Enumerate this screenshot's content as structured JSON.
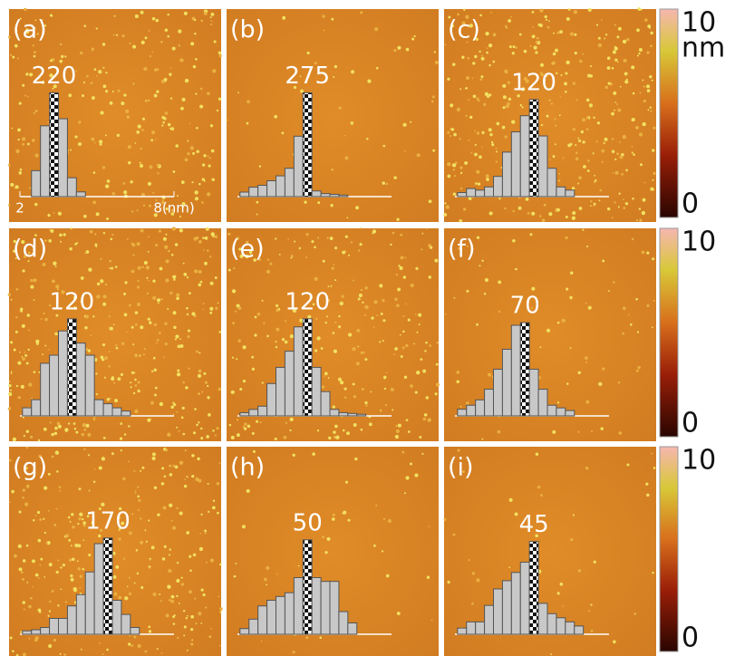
{
  "chart_data": [
    {
      "type": "histogram",
      "title": "(a)",
      "xlim": [
        2,
        8
      ],
      "xticks": [
        2,
        {
          "value": 8,
          "label": "8(nm)"
        }
      ],
      "ylim": [
        0,
        240
      ],
      "bins": [
        2.45,
        2.8,
        3.15,
        3.5,
        3.85,
        4.2,
        4.55
      ],
      "values": [
        55,
        150,
        220,
        165,
        40,
        10
      ],
      "color": "#c8c8c8"
    },
    {
      "type": "histogram",
      "title": "(b)",
      "xlim": [
        2,
        8
      ],
      "ylim": [
        0,
        300
      ],
      "bins": [
        2.1,
        2.45,
        2.8,
        3.15,
        3.5,
        3.85,
        4.2,
        4.55,
        4.9,
        5.25,
        5.6,
        5.95,
        6.3
      ],
      "values": [
        12,
        25,
        30,
        42,
        55,
        75,
        160,
        275,
        15,
        8,
        6,
        4
      ],
      "color": "#c8c8c8"
    },
    {
      "type": "histogram",
      "title": "(c)",
      "xlim": [
        2,
        8
      ],
      "ylim": [
        0,
        140
      ],
      "bins": [
        2.1,
        2.45,
        2.8,
        3.15,
        3.5,
        3.85,
        4.2,
        4.55,
        4.9,
        5.25,
        5.6,
        5.95,
        6.3,
        6.65
      ],
      "values": [
        5,
        10,
        8,
        12,
        25,
        55,
        80,
        100,
        120,
        75,
        35,
        12,
        8
      ],
      "color": "#c8c8c8"
    },
    {
      "type": "histogram",
      "title": "(d)",
      "xlim": [
        2,
        8
      ],
      "ylim": [
        0,
        140
      ],
      "bins": [
        2.1,
        2.45,
        2.8,
        3.15,
        3.5,
        3.85,
        4.2,
        4.55,
        4.9,
        5.25,
        5.6,
        5.95,
        6.3
      ],
      "values": [
        10,
        20,
        65,
        75,
        105,
        120,
        90,
        75,
        20,
        15,
        10,
        6
      ],
      "color": "#c8c8c8"
    },
    {
      "type": "histogram",
      "title": "(e)",
      "xlim": [
        2,
        8
      ],
      "ylim": [
        0,
        140
      ],
      "bins": [
        2.1,
        2.45,
        2.8,
        3.15,
        3.5,
        3.85,
        4.2,
        4.55,
        4.9,
        5.25,
        5.6,
        5.95,
        6.3,
        6.65,
        7.0
      ],
      "values": [
        4,
        8,
        12,
        40,
        60,
        80,
        110,
        120,
        60,
        30,
        8,
        4,
        3,
        2
      ],
      "color": "#c8c8c8"
    },
    {
      "type": "histogram",
      "title": "(f)",
      "xlim": [
        2,
        8
      ],
      "ylim": [
        0,
        85
      ],
      "bins": [
        2.1,
        2.45,
        2.8,
        3.15,
        3.5,
        3.85,
        4.2,
        4.55,
        4.9,
        5.25,
        5.6,
        5.95,
        6.3,
        6.65
      ],
      "values": [
        5,
        8,
        12,
        20,
        35,
        50,
        68,
        70,
        35,
        20,
        8,
        6,
        4
      ],
      "color": "#c8c8c8"
    },
    {
      "type": "histogram",
      "title": "(g)",
      "xlim": [
        2,
        8
      ],
      "ylim": [
        0,
        200
      ],
      "bins": [
        2.1,
        2.45,
        2.8,
        3.15,
        3.5,
        3.85,
        4.2,
        4.55,
        4.9,
        5.25,
        5.6,
        5.95,
        6.3,
        6.65
      ],
      "values": [
        6,
        8,
        12,
        28,
        28,
        50,
        70,
        110,
        160,
        170,
        60,
        35,
        12
      ],
      "color": "#c8c8c8"
    },
    {
      "type": "histogram",
      "title": "(h)",
      "xlim": [
        2,
        8
      ],
      "ylim": [
        0,
        60
      ],
      "bins": [
        2.1,
        2.45,
        2.8,
        3.15,
        3.5,
        3.85,
        4.2,
        4.55,
        4.9,
        5.25,
        5.6,
        5.95,
        6.3,
        6.65
      ],
      "values": [
        3,
        8,
        15,
        18,
        20,
        22,
        30,
        50,
        30,
        28,
        28,
        12,
        6
      ],
      "color": "#c8c8c8"
    },
    {
      "type": "histogram",
      "title": "(i)",
      "xlim": [
        2,
        8
      ],
      "ylim": [
        0,
        55
      ],
      "bins": [
        2.1,
        2.45,
        2.8,
        3.15,
        3.5,
        3.85,
        4.2,
        4.55,
        4.9,
        5.25,
        5.6,
        5.95,
        6.3,
        6.65,
        7.0
      ],
      "values": [
        3,
        6,
        6,
        14,
        22,
        26,
        30,
        35,
        45,
        15,
        10,
        8,
        6,
        4
      ],
      "color": "#c8c8c8"
    }
  ],
  "colorbars": [
    {
      "max_label": "10",
      "unit": "nm",
      "min_label": "0"
    },
    {
      "max_label": "10",
      "min_label": "0"
    },
    {
      "max_label": "10",
      "min_label": "0"
    }
  ]
}
